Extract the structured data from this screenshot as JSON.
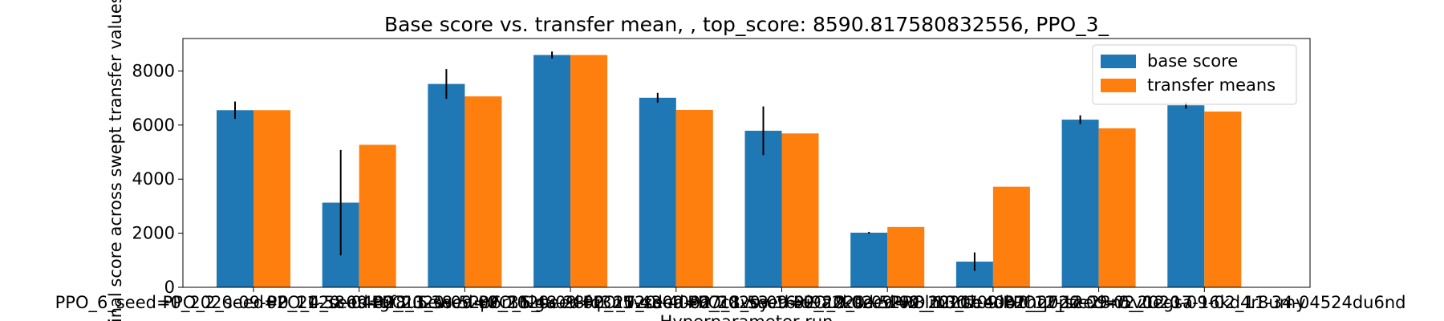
{
  "chart_data": {
    "type": "bar",
    "title": "Base score vs. transfer mean, , top_score: 8590.817580832556, PPO_3_",
    "xlabel": "Hyperparameter run",
    "ylabel": "Final score across swept transfer values",
    "ylim": [
      0,
      9200
    ],
    "yticks": [
      0,
      2000,
      4000,
      6000,
      8000
    ],
    "grid": false,
    "legend_position": "top-right",
    "categories": [
      "PPO_6_seed=0_2020-09-02_11-58-04tgf8u5ew",
      "PPO_2_seed=0_2020-09-02_11-38-52p6r36lgu",
      "PPO_4_seed=0_2020-09-02_11-48-28fq3n5vzd",
      "PPO_3_seed=0_2020-09-02_11-43-40eo7c1vsy",
      "PPO_5_seed=0_2020-09-02_11-53-16xi9a2k0d",
      "PPO_7_seed=0_2020-09-02_12-02-52w8lm3rtb",
      "PPO_8_seed=0_2020-09-02_12-07-40b1hq7pzc",
      "PPO_9_seed=0_2020-09-02_12-12-28n5v0egsa",
      "PPO_10_seed=0_2020-09-02_12-17-16kd4r8umy",
      "PPO_1_seed=0_2020-09-02_11-34-04524du6nd"
    ],
    "series": [
      {
        "name": "base score",
        "color": "#1f77b4",
        "values": [
          6550,
          3130,
          7520,
          8590,
          7010,
          5790,
          2020,
          950,
          6200,
          6730
        ],
        "errors": [
          320,
          1950,
          550,
          130,
          180,
          900,
          30,
          340,
          160,
          120
        ]
      },
      {
        "name": "transfer means",
        "color": "#ff7f0e",
        "values": [
          6550,
          5270,
          7060,
          8590,
          6560,
          5690,
          2230,
          3720,
          5880,
          6500
        ]
      }
    ]
  }
}
